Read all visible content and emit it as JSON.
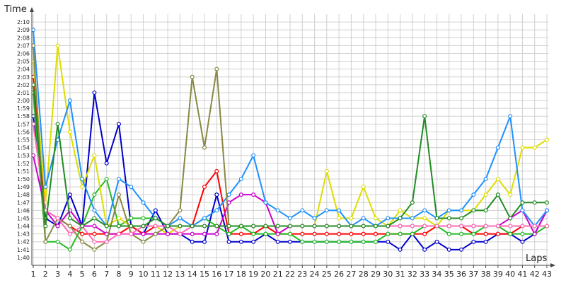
{
  "chart_data": {
    "type": "line",
    "xlabel": "Laps",
    "ylabel": "Time",
    "grid": true,
    "x_categories": [
      "1",
      "2",
      "3",
      "4",
      "5",
      "6",
      "7",
      "8",
      "9",
      "10",
      "11",
      "12",
      "13",
      "14",
      "15",
      "16",
      "17",
      "18",
      "19",
      "20",
      "21",
      "22",
      "23",
      "24",
      "25",
      "26",
      "27",
      "28",
      "29",
      "30",
      "31",
      "32",
      "33",
      "34",
      "35",
      "36",
      "37",
      "38",
      "39",
      "40",
      "41",
      "42",
      "43"
    ],
    "y_ticks": [
      "1:40",
      "1:41",
      "1:42",
      "1:43",
      "1:44",
      "1:45",
      "1:46",
      "1:47",
      "1:48",
      "1:49",
      "1:50",
      "1:51",
      "1:52",
      "1:53",
      "1:54",
      "1:55",
      "1:56",
      "1:57",
      "1:58",
      "1:59",
      "2:00",
      "2:01",
      "2:02",
      "2:03",
      "2:04",
      "2:05",
      "2:06",
      "2:07",
      "2:08",
      "2:09",
      "2:10"
    ],
    "ylim": [
      99,
      131
    ],
    "xlim": [
      1,
      43
    ],
    "series": [
      {
        "color": "#0000cc",
        "values": [
          118,
          105,
          104,
          108,
          104,
          121,
          112,
          117,
          104,
          103,
          106,
          103,
          103,
          102,
          102,
          108,
          102,
          102,
          102,
          103,
          102,
          102,
          102,
          102,
          102,
          102,
          102,
          102,
          102,
          102,
          101,
          103,
          101,
          102,
          101,
          101,
          102,
          102,
          103,
          103,
          102,
          103,
          106
        ]
      },
      {
        "color": "#ff0000",
        "values": [
          123,
          106,
          105,
          104,
          103,
          103,
          103,
          103,
          104,
          103,
          104,
          104,
          104,
          104,
          109,
          111,
          103,
          103,
          103,
          104,
          103,
          103,
          103,
          103,
          103,
          103,
          103,
          103,
          103,
          103,
          103,
          103,
          103,
          104,
          104,
          104,
          103,
          103,
          103,
          103,
          104,
          104,
          104
        ]
      },
      {
        "color": "#22bb22",
        "values": [
          121,
          102,
          102,
          101,
          104,
          108,
          110,
          104,
          105,
          105,
          105,
          104,
          104,
          104,
          105,
          104,
          103,
          104,
          103,
          103,
          103,
          103,
          102,
          102,
          102,
          102,
          102,
          102,
          102,
          103,
          103,
          103,
          104,
          104,
          103,
          103,
          103,
          104,
          104,
          103,
          103,
          103,
          104
        ]
      },
      {
        "color": "#dddd00",
        "values": [
          125,
          107,
          127,
          116,
          109,
          113,
          104,
          105,
          104,
          104,
          104,
          103,
          104,
          104,
          104,
          104,
          104,
          104,
          104,
          104,
          104,
          104,
          104,
          104,
          111,
          105,
          105,
          109,
          105,
          104,
          106,
          105,
          105,
          104,
          106,
          106,
          106,
          108,
          110,
          108,
          114,
          114,
          115
        ]
      },
      {
        "color": "#cc00cc",
        "values": [
          113,
          106,
          104,
          106,
          104,
          104,
          103,
          103,
          103,
          103,
          103,
          103,
          103,
          103,
          103,
          103,
          107,
          108,
          108,
          107,
          103,
          104,
          104,
          104,
          104,
          104,
          104,
          104,
          104,
          104,
          104,
          104,
          104,
          104,
          104,
          104,
          104,
          104,
          104,
          105,
          106,
          103,
          106
        ]
      },
      {
        "color": "#1e90ff",
        "values": [
          129,
          109,
          115,
          120,
          110,
          106,
          104,
          110,
          109,
          107,
          105,
          104,
          105,
          104,
          105,
          106,
          108,
          110,
          113,
          107,
          106,
          105,
          106,
          105,
          106,
          106,
          104,
          105,
          104,
          105,
          105,
          105,
          106,
          105,
          106,
          106,
          108,
          110,
          114,
          118,
          106,
          104,
          106
        ]
      },
      {
        "color": "#888844",
        "values": [
          127,
          102,
          105,
          104,
          102,
          101,
          102,
          108,
          103,
          102,
          103,
          104,
          106,
          123,
          114,
          124,
          104,
          104,
          104,
          104,
          104,
          104,
          104,
          104,
          104,
          104,
          104,
          104,
          104,
          104,
          104,
          104,
          104,
          104,
          104,
          104,
          104,
          104,
          104,
          104,
          104,
          104,
          104
        ]
      },
      {
        "color": "#ff69b4",
        "values": [
          117,
          106,
          105,
          103,
          104,
          102,
          102,
          103,
          103,
          104,
          104,
          104,
          103,
          104,
          104,
          104,
          104,
          104,
          104,
          104,
          104,
          104,
          104,
          104,
          104,
          104,
          104,
          104,
          104,
          104,
          104,
          104,
          104,
          104,
          104,
          104,
          104,
          104,
          104,
          104,
          104,
          104,
          104
        ]
      },
      {
        "color": "#228b22",
        "values": [
          122,
          104,
          117,
          105,
          104,
          105,
          104,
          104,
          104,
          104,
          105,
          104,
          104,
          104,
          104,
          104,
          104,
          104,
          104,
          104,
          104,
          104,
          104,
          104,
          104,
          104,
          104,
          104,
          104,
          104,
          105,
          107,
          118,
          105,
          105,
          105,
          106,
          106,
          108,
          105,
          107,
          107,
          107
        ]
      }
    ]
  }
}
